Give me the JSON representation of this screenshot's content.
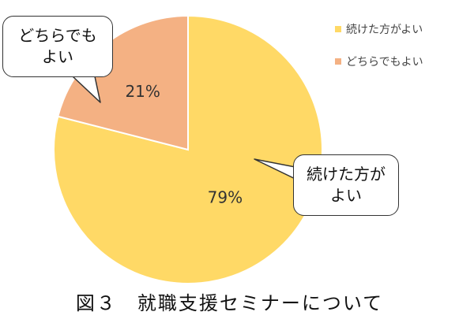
{
  "chart_data": {
    "type": "pie",
    "categories": [
      "続けた方がよい",
      "どちらでもよい"
    ],
    "values": [
      79,
      21
    ],
    "data_labels": [
      "79%",
      "21%"
    ],
    "title": "",
    "legend_position": "top-right",
    "series": [
      {
        "values": [
          79,
          21
        ]
      }
    ]
  },
  "colors": {
    "slice_0": "#FFD966",
    "slice_1": "#F4B183",
    "slice_edge": "#ffffff",
    "label_text": "#333333"
  },
  "callouts": [
    {
      "line1": "続けた方が",
      "line2": "よい"
    },
    {
      "line1": "どちらでも",
      "line2": "よい"
    }
  ],
  "caption": "図３　就職支援セミナーについて"
}
